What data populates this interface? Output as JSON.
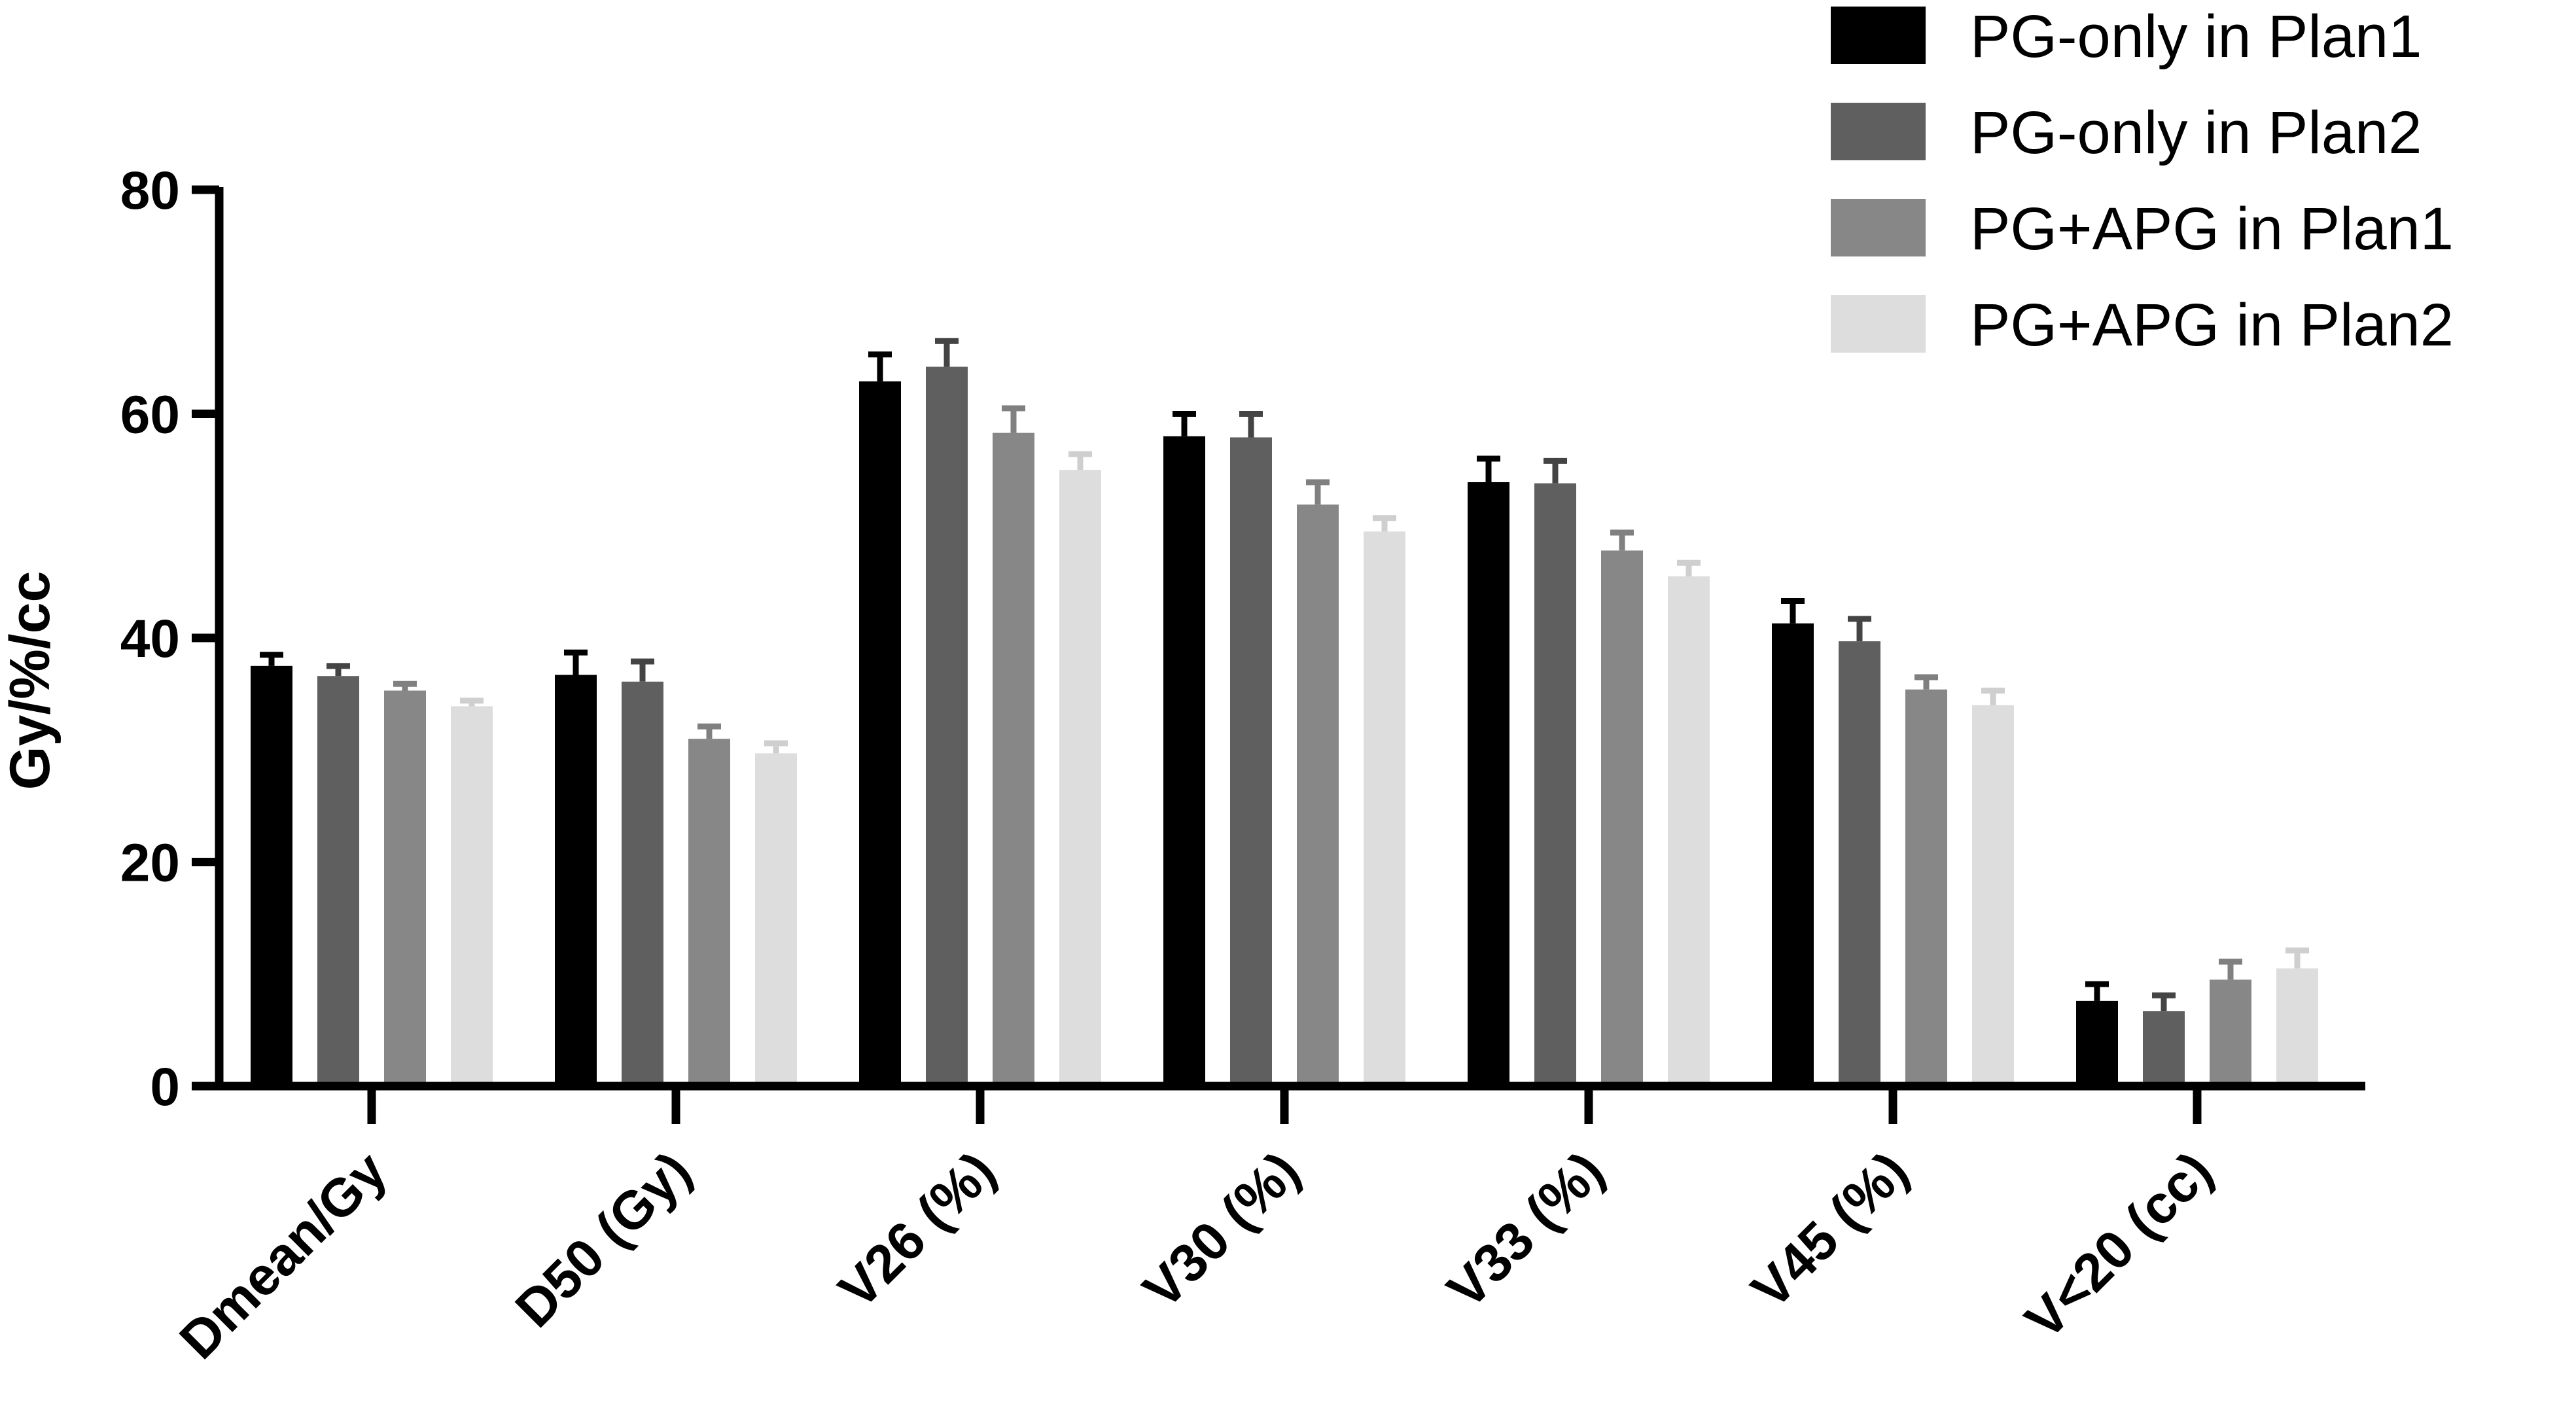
{
  "chart_data": {
    "type": "bar",
    "title": "",
    "xlabel": "",
    "ylabel": "Gy/%/cc",
    "ylim": [
      0,
      80
    ],
    "yticks": [
      0,
      20,
      40,
      60,
      80
    ],
    "grid": false,
    "legend_position": "top-right",
    "categories": [
      "Dmean/Gy",
      "D50 (Gy)",
      "V26 (%)",
      "V30 (%)",
      "V33 (%)",
      "V45 (%)",
      "V<20 (cc)"
    ],
    "series": [
      {
        "name": "PG-only in Plan1",
        "color": "#000000",
        "error_color": "#000000",
        "values": [
          37.5,
          36.7,
          62.9,
          58.0,
          53.9,
          41.3,
          7.6
        ],
        "errors": [
          1.0,
          2.0,
          2.4,
          2.0,
          2.1,
          2.0,
          1.5
        ]
      },
      {
        "name": "PG-only in Plan2",
        "color": "#5f5f5f",
        "error_color": "#444444",
        "values": [
          36.6,
          36.1,
          64.2,
          57.9,
          53.8,
          39.7,
          6.7
        ],
        "errors": [
          0.9,
          1.8,
          2.3,
          2.1,
          2.0,
          2.0,
          1.4
        ]
      },
      {
        "name": "PG+APG in Plan1",
        "color": "#878787",
        "error_color": "#808080",
        "values": [
          35.3,
          31.0,
          58.3,
          51.9,
          47.8,
          35.4,
          9.5
        ],
        "errors": [
          0.6,
          1.1,
          2.2,
          2.0,
          1.6,
          1.1,
          1.6
        ]
      },
      {
        "name": "PG+APG in Plan2",
        "color": "#dddddd",
        "error_color": "#cfcfcf",
        "values": [
          33.9,
          29.7,
          55.0,
          49.5,
          45.5,
          34.0,
          10.5
        ],
        "errors": [
          0.5,
          0.9,
          1.4,
          1.2,
          1.2,
          1.3,
          1.6
        ]
      }
    ]
  }
}
